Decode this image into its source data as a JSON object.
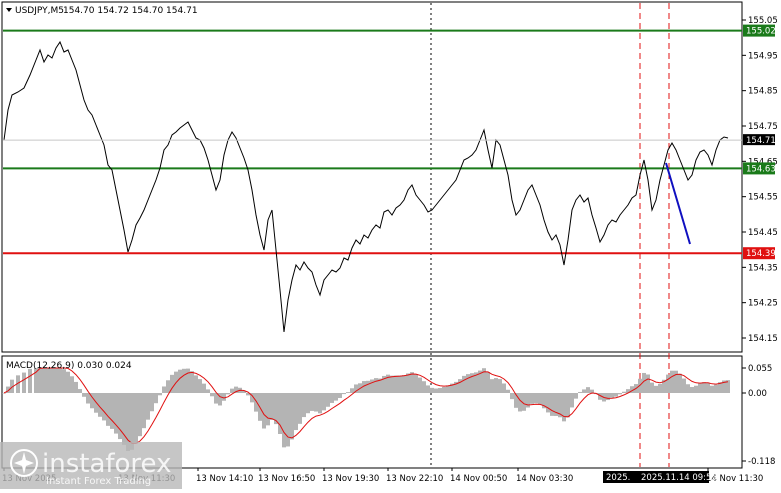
{
  "header": {
    "symbol": "USDJPY,M5",
    "ohlc": "154.70 154.72 154.70 154.71"
  },
  "price_axis": {
    "ticks": [
      "155.05",
      "154.95",
      "154.85",
      "154.75",
      "154.65",
      "154.55",
      "154.45",
      "154.35",
      "154.25",
      "154.15"
    ],
    "tick_values": [
      155.05,
      154.95,
      154.85,
      154.75,
      154.65,
      154.55,
      154.45,
      154.35,
      154.25,
      154.15
    ],
    "range": [
      154.1,
      155.07
    ]
  },
  "levels": [
    {
      "label": "155.02",
      "value": 155.02,
      "color": "#1a7a1a"
    },
    {
      "label": "154.63",
      "value": 154.63,
      "color": "#1a7a1a"
    },
    {
      "label": "154.39",
      "value": 154.39,
      "color": "#e01010"
    }
  ],
  "current_price": {
    "label": "154.71",
    "value": 154.71
  },
  "macd": {
    "label": "MACD(12,26,9) 0.030 0.024",
    "ticks": [
      "0.055",
      "0.00",
      "-0.118"
    ],
    "tick_values": [
      0.055,
      0.0,
      -0.118
    ]
  },
  "time_axis": {
    "labels": [
      "13 Nov 2025",
      "13 Nov 11:30",
      "13 Nov 14:10",
      "13 Nov 16:50",
      "13 Nov 19:30",
      "13 Nov 22:10",
      "14 Nov 00:50",
      "14 Nov 03:30",
      "14 Nov 06:10",
      "14 Nov 11:30"
    ],
    "highlight": "2025.11.14 09:55",
    "highlight_prefix": "2025."
  },
  "watermark": {
    "brand": "instaforex",
    "tagline": "Instant Forex Trading"
  },
  "colors": {
    "up_level": "#1a7a1a",
    "down_level": "#e01010",
    "signal": "#e01010",
    "hist": "#b4b4b4",
    "trend": "#1010c0"
  }
}
